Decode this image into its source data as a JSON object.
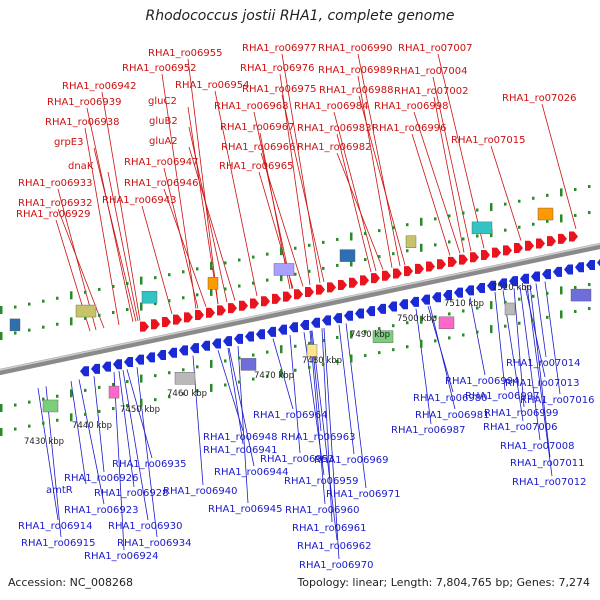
{
  "title": "Rhodococcus jostii RHA1, complete genome",
  "footer": {
    "accession": "Accession: NC_008268",
    "summary": "Topology: linear; Length: 7,804,765 bp; Genes: 7,274"
  },
  "colors": {
    "forward_gene": "#e8141e",
    "reverse_gene": "#1a2bd6",
    "forward_label": "#cc1111",
    "reverse_label": "#1a1acc",
    "axis": "#8a8a8a",
    "tick_dots": "#2a8a2a"
  },
  "ticks": [
    "7430 kbp",
    "7440 kbp",
    "7450 kbp",
    "7460 kbp",
    "7470 kbp",
    "7480 kbp",
    "7490 kbp",
    "7500 kbp",
    "7510 kbp",
    "7520 kbp"
  ],
  "forward_labels": [
    "RHA1_ro06955",
    "RHA1_ro06952",
    "RHA1_ro06942",
    "RHA1_ro06954",
    "RHA1_ro06939",
    "gluC2",
    "RHA1_ro06938",
    "gluB2",
    "grpE3",
    "gluA2",
    "dnaK",
    "RHA1_ro06947",
    "RHA1_ro06933",
    "RHA1_ro06946",
    "RHA1_ro06932",
    "RHA1_ro06943",
    "RHA1_ro06929",
    "RHA1_ro06977",
    "RHA1_ro06990",
    "RHA1_ro07007",
    "RHA1_ro06976",
    "RHA1_ro06989",
    "RHA1_ro07004",
    "RHA1_ro06975",
    "RHA1_ro06988",
    "RHA1_ro07002",
    "RHA1_ro07026",
    "RHA1_ro06968",
    "RHA1_ro06984",
    "RHA1_ro06998",
    "RHA1_ro06967",
    "RHA1_ro06983",
    "RHA1_ro06996",
    "RHA1_ro06966",
    "RHA1_ro06982",
    "RHA1_ro07015",
    "RHA1_ro06965"
  ],
  "reverse_labels": [
    "RHA1_ro07014",
    "RHA1_ro06994",
    "RHA1_ro07013",
    "RHA1_ro06980",
    "RHA1_ro06997",
    "RHA1_ro07016",
    "RHA1_ro06964",
    "RHA1_ro06981",
    "RHA1_ro06999",
    "RHA1_ro06987",
    "RHA1_ro07006",
    "RHA1_ro06948",
    "RHA1_ro06963",
    "RHA1_ro06941",
    "RHA1_ro07008",
    "RHA1_ro06935",
    "RHA1_ro06953",
    "RHA1_ro06969",
    "RHA1_ro07011",
    "RHA1_ro06944",
    "RHA1_ro06926",
    "RHA1_ro06928",
    "RHA1_ro06959",
    "RHA1_ro07012",
    "RHA1_ro06940",
    "amtR",
    "RHA1_ro06971",
    "RHA1_ro06923",
    "RHA1_ro06945",
    "RHA1_ro06960",
    "RHA1_ro06914",
    "RHA1_ro06930",
    "RHA1_ro06961",
    "RHA1_ro06915",
    "RHA1_ro06934",
    "RHA1_ro06962",
    "RHA1_ro06924",
    "RHA1_ro06970"
  ]
}
